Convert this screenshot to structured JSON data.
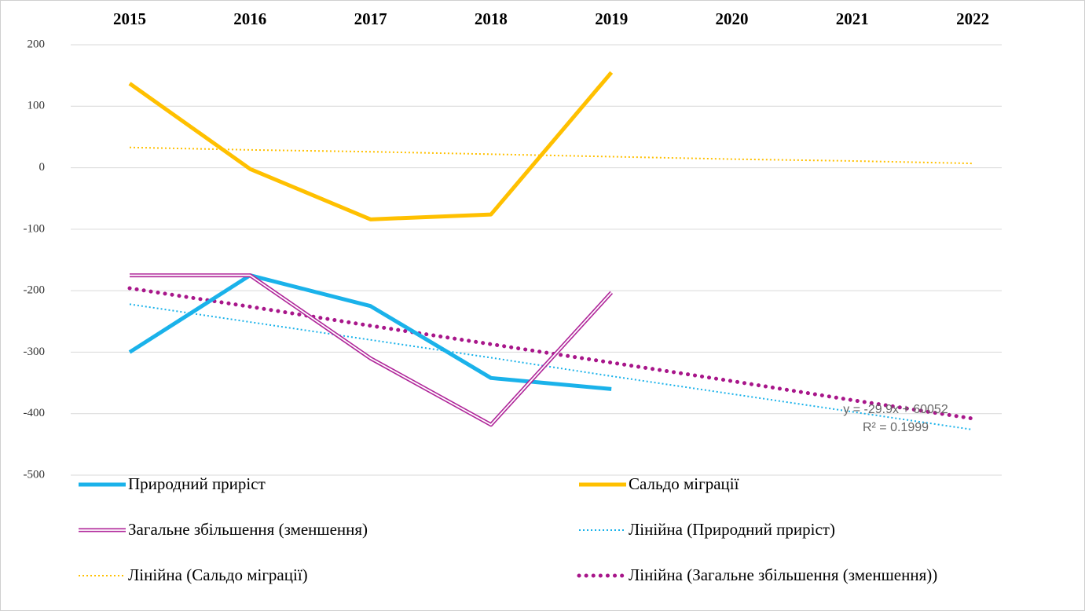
{
  "chart_data": {
    "type": "line",
    "categories": [
      "2015",
      "2016",
      "2017",
      "2018",
      "2019",
      "2020",
      "2021",
      "2022"
    ],
    "series": [
      {
        "name": "Природний приріст",
        "color": "#1ab2ea",
        "style": "solid",
        "values": [
          -300,
          -175,
          -225,
          -342,
          -360,
          null,
          null,
          null
        ]
      },
      {
        "name": "Сальдо міграції",
        "color": "#ffc000",
        "style": "solid",
        "values": [
          137,
          -2,
          -84,
          -76,
          155,
          null,
          null,
          null
        ]
      },
      {
        "name": "Загальне збільшення (зменшення)",
        "color": "#b0279a",
        "style": "double",
        "values": [
          -175,
          -175,
          -310,
          -418,
          -203,
          null,
          null,
          null
        ]
      },
      {
        "name": "Лінійна (Природний приріст)",
        "color": "#1ab2ea",
        "style": "dotted",
        "values": [
          -222,
          -251,
          -280,
          -309,
          -339,
          -368,
          -397,
          -426
        ]
      },
      {
        "name": "Лінійна (Сальдо міграції)",
        "color": "#ffc000",
        "style": "dotted",
        "values": [
          33,
          29,
          26,
          22,
          18,
          14,
          11,
          7
        ]
      },
      {
        "name": "Лінійна (Загальне збільшення (зменшення))",
        "color": "#a8168a",
        "style": "dotted-bold",
        "values": [
          -196,
          -226,
          -257,
          -287,
          -317,
          -347,
          -378,
          -408
        ]
      }
    ],
    "annotations": [
      "y = -29.9x + 60052",
      "R² = 0.1999"
    ],
    "ylim": [
      -500,
      200
    ],
    "yticks": [
      -500,
      -400,
      -300,
      -200,
      -100,
      0,
      100,
      200
    ],
    "grid": true
  }
}
